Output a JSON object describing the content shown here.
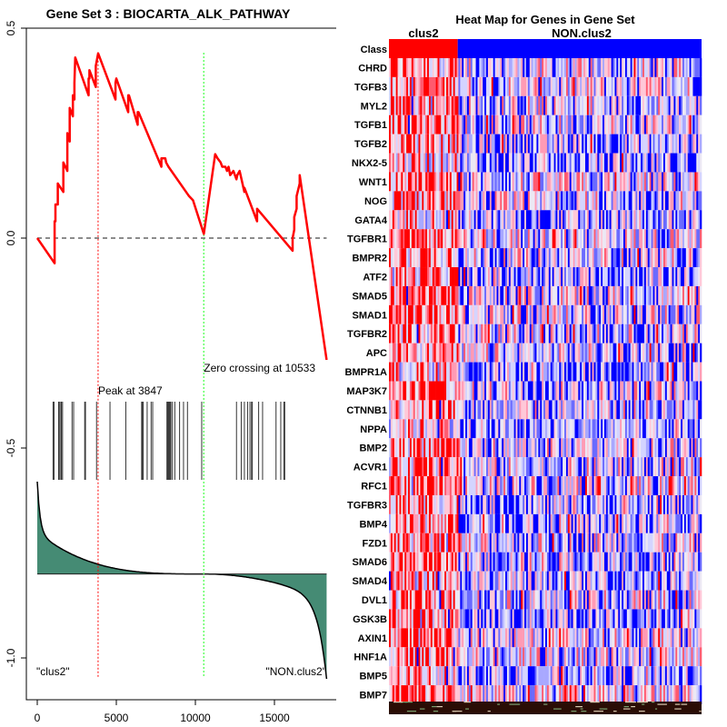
{
  "chart_data": [
    {
      "type": "line",
      "title": "Gene Set  3 : BIOCARTA_ALK_PATHWAY",
      "xlabel": "",
      "ylabel": "",
      "xlim": [
        -700,
        19000
      ],
      "ylim": [
        -1.11,
        0.5
      ],
      "x_ticks": [
        0,
        5000,
        10000,
        15000
      ],
      "x_tick_labels": [
        "0",
        "5000",
        "10000",
        "15000"
      ],
      "y_ticks": [
        0.5,
        0.0,
        -0.5,
        -1.0
      ],
      "y_tick_labels": [
        "0.5",
        "0.0",
        "-0.5",
        "-1.0"
      ],
      "grid": false,
      "series": [
        {
          "name": "running enrichment score",
          "color": "#ff0000",
          "x": [
            0,
            1100,
            1100,
            1150,
            1150,
            1300,
            1300,
            1650,
            1650,
            1900,
            1900,
            2050,
            2050,
            2250,
            2250,
            2350,
            2350,
            2400,
            2400,
            3250,
            3250,
            3300,
            3300,
            3700,
            3700,
            3850,
            4950,
            4950,
            5000,
            5750,
            5750,
            5800,
            6350,
            6350,
            6400,
            7850,
            7850,
            8100,
            8150,
            8300,
            9600,
            9850,
            10533,
            11250,
            11400,
            11600,
            11700,
            11900,
            12000,
            12100,
            12200,
            12400,
            12600,
            12650,
            12800,
            13100,
            13100,
            13900,
            13900,
            16150,
            16150,
            16250,
            16250,
            16400,
            16400,
            16600,
            16600,
            18300
          ],
          "y": [
            0.0,
            -0.06,
            0.04,
            0.04,
            0.08,
            0.08,
            0.13,
            0.11,
            0.18,
            0.16,
            0.25,
            0.23,
            0.31,
            0.29,
            0.34,
            0.33,
            0.37,
            0.43,
            0.43,
            0.34,
            0.38,
            0.38,
            0.4,
            0.36,
            0.41,
            0.44,
            0.33,
            0.37,
            0.38,
            0.3,
            0.34,
            0.34,
            0.27,
            0.3,
            0.3,
            0.17,
            0.19,
            0.19,
            0.18,
            0.17,
            0.1,
            0.09,
            0.01,
            -0.09,
            -0.1,
            -0.11,
            -0.12,
            -0.12,
            -0.13,
            -0.12,
            -0.14,
            -0.13,
            -0.15,
            -0.14,
            -0.13,
            -0.18,
            -0.17,
            -0.25,
            -0.22,
            -0.32,
            -0.29,
            -0.27,
            -0.24,
            -0.22,
            -0.19,
            -0.16,
            -0.14,
            -0.29
          ]
        }
      ],
      "y_mapping_note": "series y values are in units relative to plotted axis (0.0 baseline)",
      "baseline": {
        "y": 0.0,
        "style": "dashed",
        "color": "#666666"
      },
      "vlines": [
        {
          "name": "peak",
          "x": 3847,
          "color": "#ff0000",
          "style": "dotted",
          "label": "Peak at 3847"
        },
        {
          "name": "zero-crossing",
          "x": 10533,
          "color": "#66ff66",
          "style": "dotted",
          "label": "Zero crossing at 10533"
        }
      ],
      "hits": [
        1000,
        1060,
        1350,
        1420,
        1500,
        1530,
        1600,
        2200,
        2300,
        3000,
        3050,
        3750,
        4600,
        5600,
        6600,
        6650,
        6700,
        6950,
        7200,
        7300,
        8200,
        8250,
        8300,
        8350,
        8400,
        8450,
        8550,
        8700,
        9000,
        9250,
        9500,
        10400,
        12600,
        12900,
        13100,
        13300,
        13450,
        13550,
        13600,
        14000,
        14250,
        15100,
        15400,
        15600,
        15650
      ],
      "ranked_metric": {
        "fill_color": "#458b74",
        "line_color": "#000000",
        "baseline": -0.8,
        "start": -0.58,
        "end": -1.05,
        "zero_cross_x": 10533
      },
      "annotations": [
        {
          "text": "\"clus2\"",
          "position": "bottom-left"
        },
        {
          "text": "\"NON.clus2\"",
          "position": "bottom-right"
        }
      ]
    },
    {
      "type": "heatmap",
      "title": "Heat Map for Genes in Gene Set",
      "class_labels": [
        "clus2",
        "NON.clus2"
      ],
      "class_colors": {
        "clus2": "#ff0000",
        "NON.clus2": "#0000ff"
      },
      "class_fraction_clus2": 0.22,
      "class_row_label": "Class",
      "rows": [
        "CHRD",
        "TGFB3",
        "MYL2",
        "TGFB1",
        "TGFB2",
        "NKX2-5",
        "WNT1",
        "NOG",
        "GATA4",
        "TGFBR1",
        "BMPR2",
        "ATF2",
        "SMAD5",
        "SMAD1",
        "TGFBR2",
        "APC",
        "BMPR1A",
        "MAP3K7",
        "CTNNB1",
        "NPPA",
        "BMP2",
        "ACVR1",
        "RFC1",
        "TGFBR3",
        "BMP4",
        "FZD1",
        "SMAD6",
        "SMAD4",
        "DVL1",
        "GSK3B",
        "AXIN1",
        "HNF1A",
        "BMP5",
        "BMP7"
      ],
      "color_scale": [
        "#0000ff",
        "#d8d8ff",
        "#ffb0c8",
        "#ff0000"
      ]
    }
  ]
}
